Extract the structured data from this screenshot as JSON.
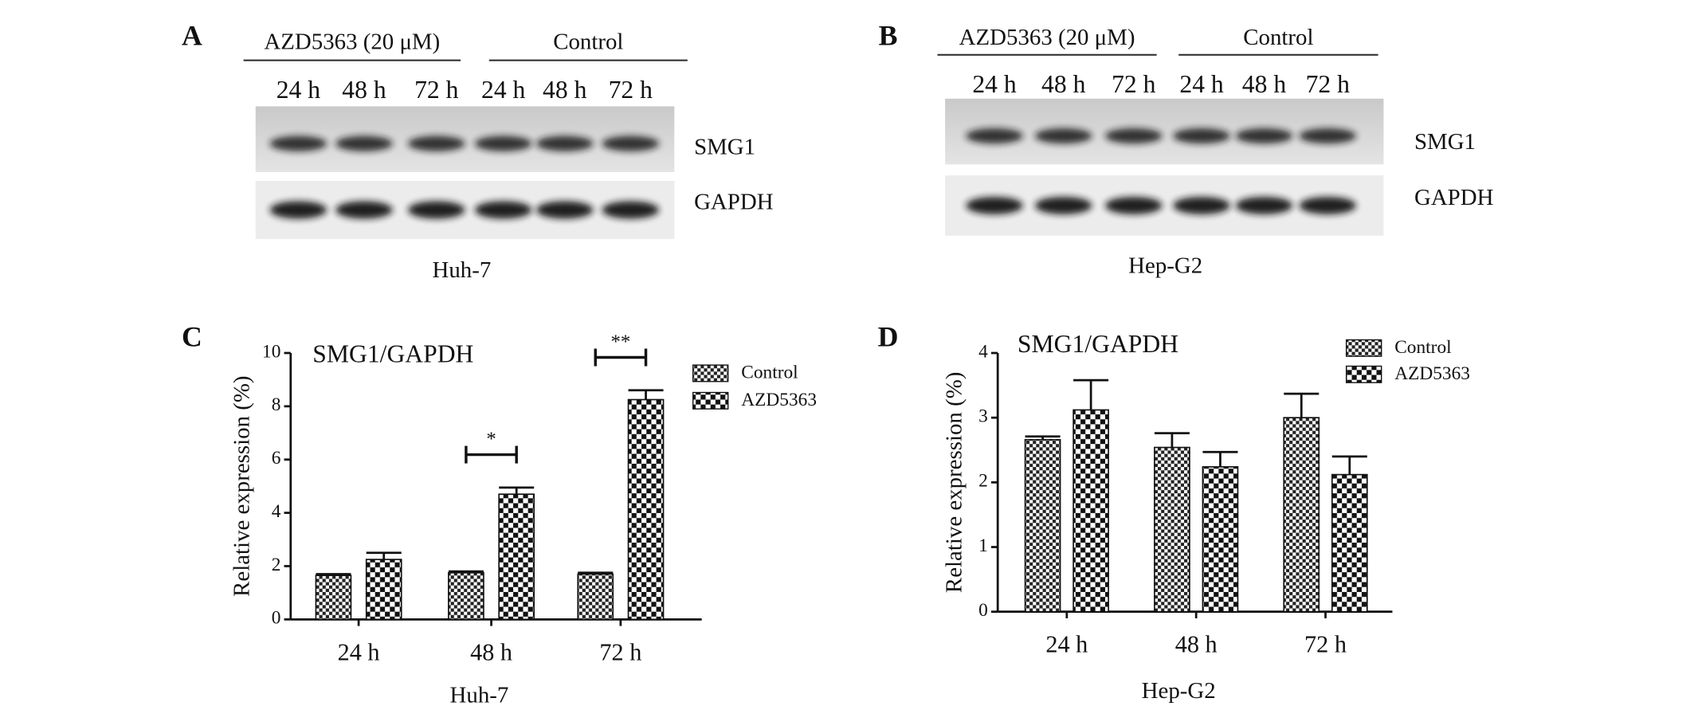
{
  "blots": [
    {
      "panel": "A",
      "groups": [
        "AZD5363 (20 μM)",
        "Control"
      ],
      "times": [
        "24 h",
        "48 h",
        "72 h",
        "24 h",
        "48 h",
        "72 h"
      ],
      "bands": [
        "SMG1",
        "GAPDH"
      ],
      "cell": "Huh-7"
    },
    {
      "panel": "B",
      "groups": [
        "AZD5363 (20 μM)",
        "Control"
      ],
      "times": [
        "24 h",
        "48 h",
        "72 h",
        "24 h",
        "48 h",
        "72 h"
      ],
      "bands": [
        "SMG1",
        "GAPDH"
      ],
      "cell": "Hep-G2"
    }
  ],
  "chart_data": [
    {
      "panel": "C",
      "type": "bar",
      "title": "SMG1/GAPDH",
      "y_label": "Relative expression (%)",
      "x_label": "Huh-7",
      "categories": [
        "24 h",
        "48 h",
        "72 h"
      ],
      "series": [
        {
          "name": "Control",
          "pattern": "fine-check",
          "values": [
            1.65,
            1.75,
            1.7
          ],
          "errors": [
            0.05,
            0.05,
            0.05
          ]
        },
        {
          "name": "AZD5363",
          "pattern": "coarse-check",
          "values": [
            2.25,
            4.7,
            8.25
          ],
          "errors": [
            0.25,
            0.25,
            0.35
          ]
        }
      ],
      "significance": [
        null,
        "*",
        "**"
      ],
      "ylim": [
        0,
        10
      ],
      "yticks": [
        0,
        2,
        4,
        6,
        8,
        10
      ]
    },
    {
      "panel": "D",
      "type": "bar",
      "title": "SMG1/GAPDH",
      "y_label": "Relative expression (%)",
      "x_label": "Hep-G2",
      "categories": [
        "24 h",
        "48 h",
        "72 h"
      ],
      "series": [
        {
          "name": "Control",
          "pattern": "fine-check",
          "values": [
            2.66,
            2.54,
            3.0
          ],
          "errors": [
            0.05,
            0.22,
            0.37
          ]
        },
        {
          "name": "AZD5363",
          "pattern": "coarse-check",
          "values": [
            3.12,
            2.24,
            2.12
          ],
          "errors": [
            0.46,
            0.23,
            0.28
          ]
        }
      ],
      "significance": [
        null,
        null,
        null
      ],
      "ylim": [
        0,
        4
      ],
      "yticks": [
        0,
        1,
        2,
        3,
        4
      ]
    }
  ]
}
